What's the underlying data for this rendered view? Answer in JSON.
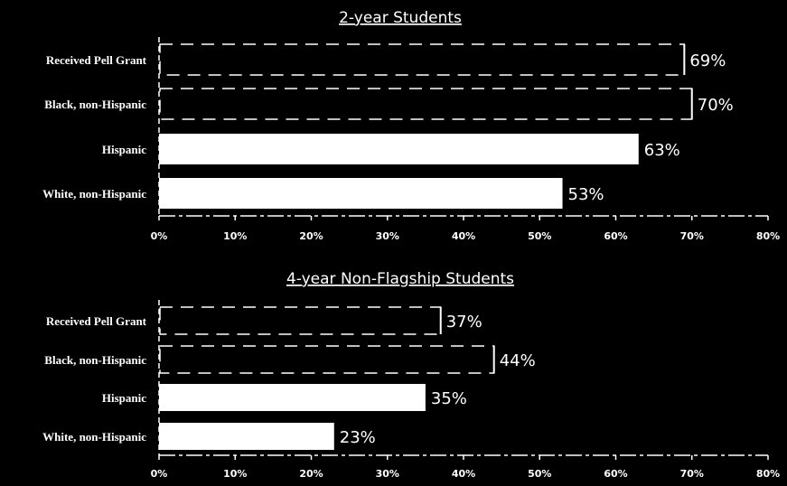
{
  "chart_data": [
    {
      "type": "bar",
      "orientation": "horizontal",
      "title": "2-year Students",
      "categories": [
        "Received Pell Grant",
        "Black, non-Hispanic",
        "Hispanic",
        "White, non-Hispanic"
      ],
      "values": [
        69,
        70,
        63,
        53
      ],
      "value_labels": [
        "69%",
        "70%",
        "63%",
        "53%"
      ],
      "bar_styles": [
        "dashed-outline",
        "dashed-outline",
        "solid",
        "solid"
      ],
      "xlim": [
        0,
        80
      ],
      "xticks": [
        "0%",
        "10%",
        "20%",
        "30%",
        "40%",
        "50%",
        "60%",
        "70%",
        "80%"
      ],
      "grid": false,
      "colors": {
        "bar": "#ffffff",
        "background": "#000000"
      }
    },
    {
      "type": "bar",
      "orientation": "horizontal",
      "title": "4-year Non-Flagship Students",
      "categories": [
        "Received Pell Grant",
        "Black, non-Hispanic",
        "Hispanic",
        "White, non-Hispanic"
      ],
      "values": [
        37,
        44,
        35,
        23
      ],
      "value_labels": [
        "37%",
        "44%",
        "35%",
        "23%"
      ],
      "bar_styles": [
        "dashed-outline",
        "dashed-outline",
        "solid",
        "solid"
      ],
      "xlim": [
        0,
        80
      ],
      "xticks": [
        "0%",
        "10%",
        "20%",
        "30%",
        "40%",
        "50%",
        "60%",
        "70%",
        "80%"
      ],
      "grid": false,
      "colors": {
        "bar": "#ffffff",
        "background": "#000000"
      }
    }
  ]
}
